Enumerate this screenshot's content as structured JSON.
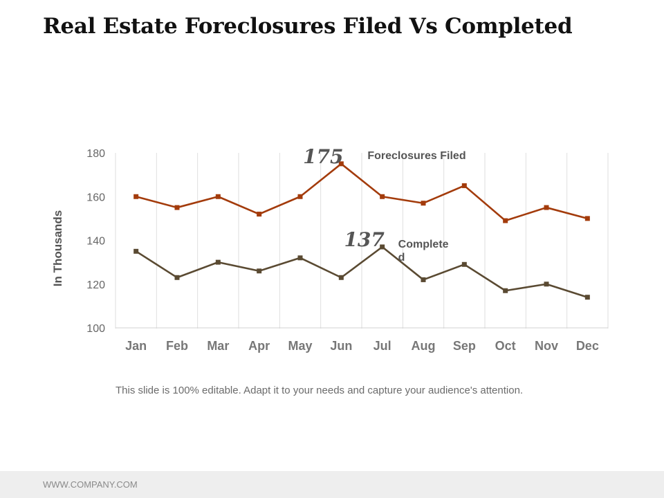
{
  "slide": {
    "title": "Real Estate Foreclosures Filed Vs Completed",
    "caption": "This slide is 100% editable. Adapt it to your needs and capture your audience's attention.",
    "footer": "WWW.COMPANY.COM"
  },
  "chart_data": {
    "type": "line",
    "title": "",
    "xlabel": "",
    "ylabel": "In Thousands",
    "categories": [
      "Jan",
      "Feb",
      "Mar",
      "Apr",
      "May",
      "Jun",
      "Jul",
      "Aug",
      "Sep",
      "Oct",
      "Nov",
      "Dec"
    ],
    "ylim": [
      100,
      180
    ],
    "yticks": [
      "100",
      "120",
      "140",
      "160",
      "180"
    ],
    "grid": "vertical",
    "series": [
      {
        "name": "Foreclosures Filed",
        "color": "#a33b0b",
        "values": [
          160,
          155,
          160,
          152,
          160,
          175,
          160,
          157,
          165,
          149,
          155,
          150
        ]
      },
      {
        "name": "Completed",
        "color": "#5a4a32",
        "values": [
          135,
          123,
          130,
          126,
          132,
          123,
          137,
          122,
          129,
          117,
          120,
          114
        ]
      }
    ],
    "annotations": [
      {
        "text": "175",
        "series": "Foreclosures Filed",
        "category": "Jun"
      },
      {
        "text": "137",
        "series": "Completed",
        "category": "Jul"
      }
    ],
    "series_labels": [
      {
        "text": "Foreclosures Filed"
      },
      {
        "text": "Complete\nd"
      }
    ]
  }
}
